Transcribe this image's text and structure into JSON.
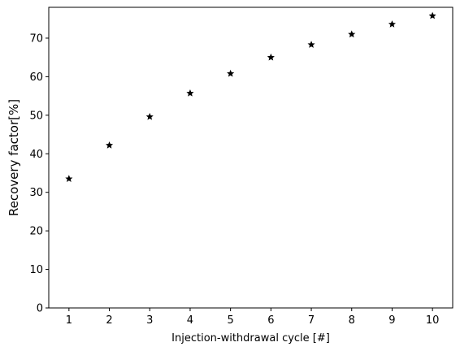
{
  "chart_data": {
    "type": "scatter",
    "title": "",
    "xlabel": "Injection-withdrawal cycle [#]",
    "ylabel": "Recovery factor[%]",
    "x": [
      1,
      2,
      3,
      4,
      5,
      6,
      7,
      8,
      9,
      10
    ],
    "y": [
      33.5,
      42.2,
      49.6,
      55.7,
      60.8,
      65.0,
      68.3,
      71.0,
      73.6,
      75.8
    ],
    "xlim": [
      0.5,
      10.5
    ],
    "ylim": [
      0,
      78
    ],
    "xticks": [
      "1",
      "2",
      "3",
      "4",
      "5",
      "6",
      "7",
      "8",
      "9",
      "10"
    ],
    "yticks": [
      "0",
      "10",
      "20",
      "30",
      "40",
      "50",
      "60",
      "70"
    ],
    "marker": "star",
    "marker_color": "#000000",
    "grid": false,
    "legend": "none"
  }
}
